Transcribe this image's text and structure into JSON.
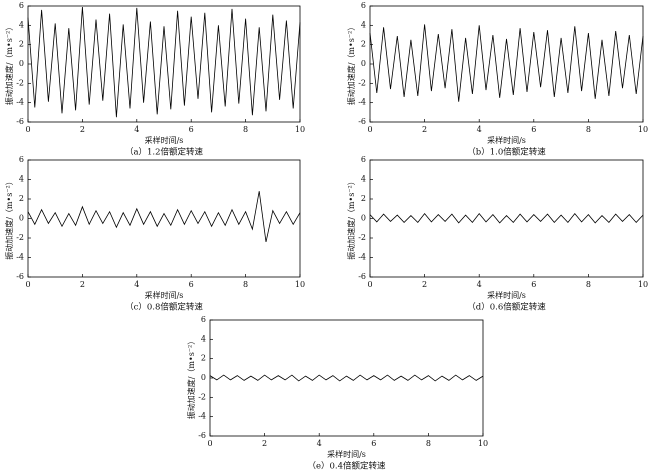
{
  "chart_data": [
    {
      "type": "line",
      "caption": "（a）1.2倍额定转速",
      "xlabel": "采样时间/s",
      "ylabel": "振动加速度/（m•s⁻²）",
      "color": "#000000",
      "xlim": [
        0,
        10
      ],
      "ylim": [
        -6,
        6
      ],
      "xticks": [
        0,
        2,
        4,
        6,
        8,
        10
      ],
      "yticks": [
        -6,
        -4,
        -2,
        0,
        2,
        4,
        6
      ],
      "x": [
        0,
        0.25,
        0.5,
        0.75,
        1,
        1.25,
        1.5,
        1.75,
        2,
        2.25,
        2.5,
        2.75,
        3,
        3.25,
        3.5,
        3.75,
        4,
        4.25,
        4.5,
        4.75,
        5,
        5.25,
        5.5,
        5.75,
        6,
        6.25,
        6.5,
        6.75,
        7,
        7.25,
        7.5,
        7.75,
        8,
        8.25,
        8.5,
        8.75,
        9,
        9.25,
        9.5,
        9.75,
        10
      ],
      "values": [
        4.8,
        -4.5,
        5.6,
        -3.9,
        4.2,
        -5.1,
        3.7,
        -4.8,
        5.9,
        -4.2,
        4.6,
        -3.8,
        5.2,
        -5.5,
        4.1,
        -4.6,
        5.8,
        -4.0,
        4.4,
        -5.2,
        3.9,
        -4.7,
        5.5,
        -4.3,
        4.9,
        -3.6,
        5.3,
        -5.0,
        4.0,
        -4.4,
        5.7,
        -4.1,
        4.7,
        -5.3,
        3.8,
        -4.9,
        5.1,
        -3.7,
        4.5,
        -4.6,
        4.3
      ]
    },
    {
      "type": "line",
      "caption": "（b）1.0倍额定转速",
      "xlabel": "采样时间/s",
      "ylabel": "振动加速度/（m•s⁻²）",
      "color": "#000000",
      "xlim": [
        0,
        10
      ],
      "ylim": [
        -6,
        6
      ],
      "xticks": [
        0,
        2,
        4,
        6,
        8,
        10
      ],
      "yticks": [
        -6,
        -4,
        -2,
        0,
        2,
        4,
        6
      ],
      "x": [
        0,
        0.25,
        0.5,
        0.75,
        1,
        1.25,
        1.5,
        1.75,
        2,
        2.25,
        2.5,
        2.75,
        3,
        3.25,
        3.5,
        3.75,
        4,
        4.25,
        4.5,
        4.75,
        5,
        5.25,
        5.5,
        5.75,
        6,
        6.25,
        6.5,
        6.75,
        7,
        7.25,
        7.5,
        7.75,
        8,
        8.25,
        8.5,
        8.75,
        9,
        9.25,
        9.5,
        9.75,
        10
      ],
      "values": [
        3.2,
        -3.0,
        3.8,
        -2.6,
        2.9,
        -3.4,
        2.5,
        -3.3,
        4.1,
        -2.8,
        3.1,
        -2.5,
        3.6,
        -3.9,
        2.7,
        -3.1,
        4.0,
        -2.7,
        3.0,
        -3.5,
        2.6,
        -3.2,
        3.7,
        -2.9,
        3.3,
        -2.4,
        3.5,
        -3.4,
        2.7,
        -3.0,
        3.9,
        -2.8,
        3.2,
        -3.6,
        2.5,
        -3.3,
        3.4,
        -2.5,
        3.0,
        -3.1,
        2.9
      ]
    },
    {
      "type": "line",
      "caption": "（c）0.8倍额定转速",
      "xlabel": "采样时间/s",
      "ylabel": "振动加速度/（m•s⁻²）",
      "color": "#000000",
      "xlim": [
        0,
        10
      ],
      "ylim": [
        -6,
        6
      ],
      "xticks": [
        0,
        2,
        4,
        6,
        8,
        10
      ],
      "yticks": [
        -6,
        -4,
        -2,
        0,
        2,
        4,
        6
      ],
      "x": [
        0,
        0.25,
        0.5,
        0.75,
        1,
        1.25,
        1.5,
        1.75,
        2,
        2.25,
        2.5,
        2.75,
        3,
        3.25,
        3.5,
        3.75,
        4,
        4.25,
        4.5,
        4.75,
        5,
        5.25,
        5.5,
        5.75,
        6,
        6.25,
        6.5,
        6.75,
        7,
        7.25,
        7.5,
        7.75,
        8,
        8.25,
        8.5,
        8.75,
        9,
        9.25,
        9.5,
        9.75,
        10
      ],
      "values": [
        0.7,
        -0.6,
        0.9,
        -0.5,
        0.6,
        -0.8,
        0.5,
        -0.7,
        1.2,
        -0.6,
        0.8,
        -0.5,
        0.7,
        -0.9,
        0.6,
        -0.7,
        1.0,
        -0.6,
        0.7,
        -0.8,
        0.5,
        -0.7,
        0.9,
        -0.6,
        0.8,
        -0.5,
        0.7,
        -0.8,
        0.6,
        -0.7,
        0.9,
        -0.6,
        0.7,
        -1.1,
        2.8,
        -2.4,
        0.8,
        -0.5,
        0.7,
        -0.6,
        0.6
      ]
    },
    {
      "type": "line",
      "caption": "（d）0.6倍额定转速",
      "xlabel": "采样时间/s",
      "ylabel": "振动加速度/（m•s⁻²）",
      "color": "#000000",
      "xlim": [
        0,
        10
      ],
      "ylim": [
        -6,
        6
      ],
      "xticks": [
        0,
        2,
        4,
        6,
        8,
        10
      ],
      "yticks": [
        -6,
        -4,
        -2,
        0,
        2,
        4,
        6
      ],
      "x": [
        0,
        0.25,
        0.5,
        0.75,
        1,
        1.25,
        1.5,
        1.75,
        2,
        2.25,
        2.5,
        2.75,
        3,
        3.25,
        3.5,
        3.75,
        4,
        4.25,
        4.5,
        4.75,
        5,
        5.25,
        5.5,
        5.75,
        6,
        6.25,
        6.5,
        6.75,
        7,
        7.25,
        7.5,
        7.75,
        8,
        8.25,
        8.5,
        8.75,
        9,
        9.25,
        9.5,
        9.75,
        10
      ],
      "values": [
        0.4,
        -0.35,
        0.45,
        -0.3,
        0.35,
        -0.4,
        0.3,
        -0.4,
        0.5,
        -0.35,
        0.4,
        -0.3,
        0.45,
        -0.45,
        0.35,
        -0.4,
        0.5,
        -0.35,
        0.4,
        -0.45,
        0.3,
        -0.4,
        0.45,
        -0.35,
        0.4,
        -0.3,
        0.45,
        -0.4,
        0.35,
        -0.4,
        0.5,
        -0.35,
        0.4,
        -0.45,
        0.3,
        -0.4,
        0.45,
        -0.3,
        0.4,
        -0.4,
        0.35
      ]
    },
    {
      "type": "line",
      "caption": "（e）0.4倍额定转速",
      "xlabel": "采样时间/s",
      "ylabel": "振动加速度/（m•s⁻²）",
      "color": "#000000",
      "xlim": [
        0,
        10
      ],
      "ylim": [
        -6,
        6
      ],
      "xticks": [
        0,
        2,
        4,
        6,
        8,
        10
      ],
      "yticks": [
        -6,
        -4,
        -2,
        0,
        2,
        4,
        6
      ],
      "x": [
        0,
        0.25,
        0.5,
        0.75,
        1,
        1.25,
        1.5,
        1.75,
        2,
        2.25,
        2.5,
        2.75,
        3,
        3.25,
        3.5,
        3.75,
        4,
        4.25,
        4.5,
        4.75,
        5,
        5.25,
        5.5,
        5.75,
        6,
        6.25,
        6.5,
        6.75,
        7,
        7.25,
        7.5,
        7.75,
        8,
        8.25,
        8.5,
        8.75,
        9,
        9.25,
        9.5,
        9.75,
        10
      ],
      "values": [
        0.25,
        -0.2,
        0.3,
        -0.2,
        0.25,
        -0.25,
        0.2,
        -0.25,
        0.3,
        -0.2,
        0.25,
        -0.2,
        0.3,
        -0.3,
        0.2,
        -0.25,
        0.3,
        -0.2,
        0.25,
        -0.3,
        0.2,
        -0.25,
        0.3,
        -0.2,
        0.25,
        -0.2,
        0.3,
        -0.25,
        0.2,
        -0.25,
        0.3,
        -0.2,
        0.25,
        -0.3,
        0.2,
        -0.25,
        0.3,
        -0.2,
        0.25,
        -0.25,
        0.2
      ]
    }
  ]
}
